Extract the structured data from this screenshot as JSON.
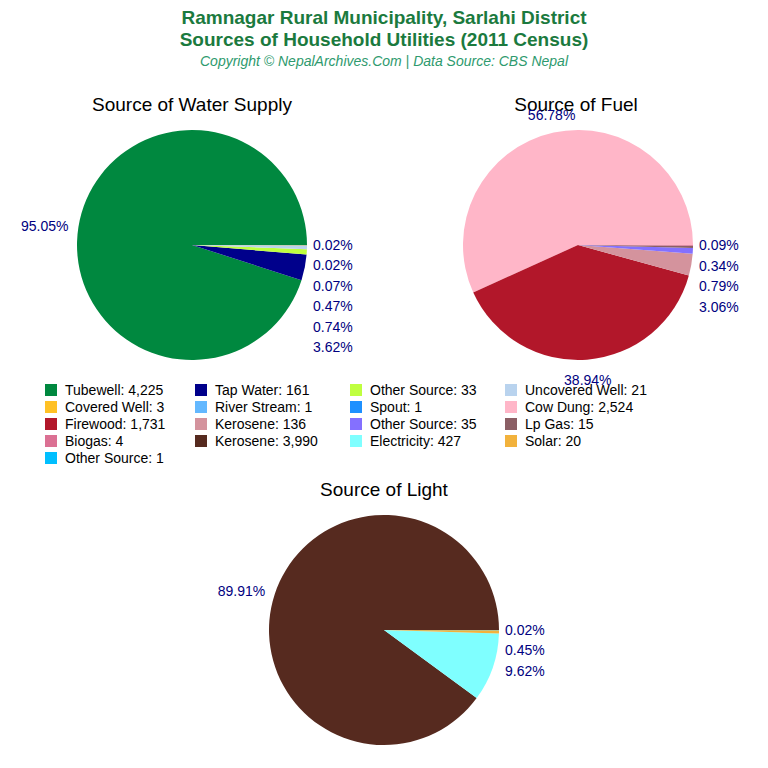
{
  "header": {
    "title": [
      "Ramnagar Rural Municipality, Sarlahi District",
      "Sources of Household Utilities (2011 Census)"
    ],
    "subtitle": "Copyright © NepalArchives.Com | Data Source: CBS Nepal"
  },
  "chart_data": [
    {
      "type": "pie",
      "title": "Source of Water Supply",
      "categories": [
        "Tubewell: 4,225",
        "Tap Water: 161",
        "Other Source: 33",
        "Uncovered Well: 21",
        "Covered Well: 3",
        "River Stream: 1",
        "Spout: 1"
      ],
      "values": [
        95.05,
        3.62,
        0.74,
        0.47,
        0.07,
        0.02,
        0.02
      ],
      "value_labels": [
        "95.05%",
        "3.62%",
        "0.74%",
        "0.47%",
        "0.07%",
        "0.02%",
        "0.02%"
      ],
      "colors": [
        "#00883F",
        "#00008B",
        "#BFFF3F",
        "#B9D3EE",
        "#FFC125",
        "#63B8FF",
        "#1E90FF"
      ],
      "data_labels": true
    },
    {
      "type": "pie",
      "title": "Source of Fuel",
      "categories": [
        "Cow Dung: 2,524",
        "Firewood: 1,731",
        "Kerosene: 136",
        "Other Source: 35",
        "Lp Gas: 15",
        "Biogas: 4"
      ],
      "values": [
        56.78,
        38.94,
        3.06,
        0.79,
        0.34,
        0.09
      ],
      "value_labels": [
        "56.78%",
        "38.94%",
        "3.06%",
        "0.79%",
        "0.34%",
        "0.09%"
      ],
      "colors": [
        "#FFB6C8",
        "#B2172A",
        "#D4939D",
        "#8470FF",
        "#8B5F65",
        "#DB7093"
      ],
      "data_labels": true
    },
    {
      "type": "pie",
      "title": "Source of Light",
      "categories": [
        "Kerosene: 3,990",
        "Electricity: 427",
        "Solar: 20",
        "Other Source: 1"
      ],
      "values": [
        89.91,
        9.62,
        0.45,
        0.02
      ],
      "value_labels": [
        "89.91%",
        "9.62%",
        "0.45%",
        "0.02%"
      ],
      "colors": [
        "#562A1F",
        "#7FFFFF",
        "#F2B23C",
        "#00BFFF"
      ],
      "data_labels": true
    }
  ]
}
